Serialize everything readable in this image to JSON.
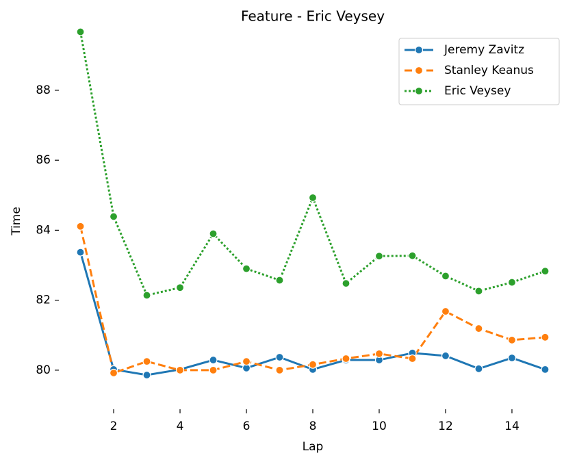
{
  "chart_data": {
    "type": "line",
    "title": "Feature - Eric Veysey",
    "x_label": "Lap",
    "y_label": "Time",
    "x": [
      1,
      2,
      3,
      4,
      5,
      6,
      7,
      8,
      9,
      10,
      11,
      12,
      13,
      14,
      15
    ],
    "series": [
      {
        "name": "Jeremy Zavitz",
        "color": "#1f77b4",
        "linestyle": "solid",
        "values": [
          83.37,
          80.02,
          79.86,
          80.02,
          80.29,
          80.06,
          80.37,
          80.02,
          80.29,
          80.29,
          80.49,
          80.41,
          80.04,
          80.35,
          80.02
        ]
      },
      {
        "name": "Stanley Keanus",
        "color": "#ff7f0e",
        "linestyle": "dashed",
        "values": [
          84.11,
          79.92,
          80.25,
          80.0,
          80.0,
          80.25,
          80.0,
          80.16,
          80.33,
          80.47,
          80.33,
          81.68,
          81.19,
          80.86,
          80.94
        ]
      },
      {
        "name": "Eric Veysey",
        "color": "#2ca02c",
        "linestyle": "dotted",
        "values": [
          89.67,
          84.39,
          82.14,
          82.36,
          83.9,
          82.9,
          82.57,
          84.93,
          82.48,
          83.26,
          83.27,
          82.69,
          82.26,
          82.51,
          82.83
        ]
      }
    ],
    "xlim": [
      0.7,
      15.3
    ],
    "xticks": [
      2,
      4,
      6,
      8,
      10,
      12,
      14
    ],
    "ylim": [
      79.0,
      89.7
    ],
    "yticks": [
      80,
      82,
      84,
      86,
      88
    ],
    "legend": "upper right"
  }
}
